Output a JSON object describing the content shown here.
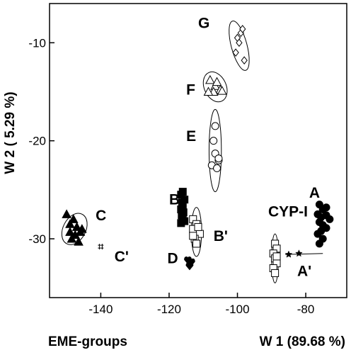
{
  "chart_data": {
    "type": "scatter",
    "xlabel": "W 1 (89.68 %)",
    "ylabel": "W 2 ( 5.29 %)",
    "caption": "EME-groups",
    "xlim": [
      -155,
      -68
    ],
    "ylim": [
      -36,
      -6
    ],
    "xticks": [
      -140,
      -120,
      -100,
      -80
    ],
    "yticks": [
      -10,
      -20,
      -30
    ],
    "grid": false,
    "groups": [
      {
        "name": "G",
        "marker": "diamond-open",
        "points": [
          [
            -100,
            -9.5
          ],
          [
            -99,
            -9
          ],
          [
            -98.5,
            -8.6
          ],
          [
            -99.5,
            -10
          ],
          [
            -100.5,
            -11
          ],
          [
            -98,
            -11.8
          ]
        ],
        "ellipse": {
          "cx": -99.5,
          "cy": -10.3,
          "rx": 2.3,
          "ry": 2.6,
          "angle": 15
        }
      },
      {
        "name": "F",
        "marker": "triangle-open",
        "points": [
          [
            -108,
            -13.8
          ],
          [
            -106.5,
            -14.4
          ],
          [
            -105,
            -14.8
          ],
          [
            -107,
            -15
          ],
          [
            -104.5,
            -14.9
          ],
          [
            -108.5,
            -15
          ],
          [
            -106,
            -14
          ]
        ],
        "ellipse": {
          "cx": -106.5,
          "cy": -14.5,
          "rx": 3.2,
          "ry": 1.6,
          "angle": 25
        }
      },
      {
        "name": "E",
        "marker": "circle-open",
        "points": [
          [
            -106.5,
            -18.5
          ],
          [
            -107,
            -20
          ],
          [
            -106.5,
            -21.3
          ],
          [
            -105.5,
            -22
          ],
          [
            -107.5,
            -22.5
          ],
          [
            -106,
            -22.8
          ],
          [
            -105.5,
            -21.8
          ]
        ],
        "ellipse": {
          "cx": -106.5,
          "cy": -21,
          "rx": 1.8,
          "ry": 4.2,
          "angle": 0
        }
      },
      {
        "name": "B",
        "marker": "square-filled",
        "points": [
          [
            -116,
            -25.2
          ],
          [
            -116.5,
            -25.5
          ],
          [
            -115.5,
            -26
          ],
          [
            -116.2,
            -26.3
          ],
          [
            -116,
            -26.6
          ],
          [
            -116.5,
            -27
          ],
          [
            -115.8,
            -27.3
          ],
          [
            -116.3,
            -27.6
          ],
          [
            -116,
            -27.9
          ],
          [
            -115.5,
            -28.2
          ],
          [
            -116.5,
            -28.4
          ]
        ],
        "ellipse": null
      },
      {
        "name": "B'",
        "marker": "square-open",
        "points": [
          [
            -113,
            -28
          ],
          [
            -112,
            -28.5
          ],
          [
            -113,
            -29
          ],
          [
            -111,
            -29.5
          ],
          [
            -112.5,
            -30
          ],
          [
            -112,
            -30.5
          ],
          [
            -113,
            -29.7
          ],
          [
            -111.5,
            -28.8
          ]
        ],
        "ellipse": {
          "cx": -112,
          "cy": -29.3,
          "rx": 1.5,
          "ry": 2.5,
          "angle": 0
        }
      },
      {
        "name": "C",
        "marker": "triangle-filled",
        "points": [
          [
            -150,
            -27.5
          ],
          [
            -148,
            -28
          ],
          [
            -149,
            -28.5
          ],
          [
            -147,
            -28.8
          ],
          [
            -149,
            -29.3
          ],
          [
            -147.5,
            -29.6
          ],
          [
            -146,
            -29.3
          ],
          [
            -148.5,
            -30
          ],
          [
            -146.5,
            -30.3
          ],
          [
            -145.5,
            -29
          ]
        ],
        "ellipse": {
          "cx": -147.7,
          "cy": -29,
          "rx": 3.3,
          "ry": 1.7,
          "angle": -28
        }
      },
      {
        "name": "C'",
        "marker": "hash",
        "points": [
          [
            -140,
            -30.8
          ]
        ],
        "ellipse": null
      },
      {
        "name": "D",
        "marker": "heart-filled",
        "points": [
          [
            -114.5,
            -32.2
          ],
          [
            -113.5,
            -32.4
          ],
          [
            -114,
            -32.8
          ]
        ],
        "ellipse": null
      },
      {
        "name": "A",
        "marker": "circle-filled",
        "points": [
          [
            -76,
            -26.5
          ],
          [
            -75,
            -27
          ],
          [
            -74,
            -26.8
          ],
          [
            -76.5,
            -27.5
          ],
          [
            -75.5,
            -27.8
          ],
          [
            -74,
            -27.6
          ],
          [
            -73,
            -28
          ],
          [
            -76,
            -28.3
          ],
          [
            -75,
            -28.6
          ],
          [
            -74,
            -28.9
          ],
          [
            -75.5,
            -29.2
          ],
          [
            -76.5,
            -29.5
          ],
          [
            -75,
            -30
          ],
          [
            -76,
            -30.5
          ]
        ],
        "ellipse": null
      },
      {
        "name": "CYP-I",
        "marker": "square-open",
        "points": [
          [
            -89,
            -30.5
          ],
          [
            -88.5,
            -31
          ],
          [
            -89.5,
            -31.5
          ],
          [
            -89,
            -32
          ],
          [
            -88.5,
            -32.5
          ],
          [
            -89.5,
            -33
          ],
          [
            -89,
            -33.5
          ],
          [
            -88.5,
            -31.8
          ]
        ],
        "ellipse": {
          "cx": -89,
          "cy": -32,
          "rx": 1,
          "ry": 2.5,
          "angle": 0
        }
      },
      {
        "name": "A'",
        "marker": "star-filled",
        "points": [
          [
            -85,
            -31.6
          ],
          [
            -82,
            -31.5
          ]
        ],
        "ellipse": null,
        "line": [
          [
            -86,
            -31.6
          ],
          [
            -75,
            -31.5
          ]
        ]
      }
    ],
    "labels": [
      {
        "text": "G",
        "x": -111.5,
        "y": -8
      },
      {
        "text": "F",
        "x": -115,
        "y": -14.8
      },
      {
        "text": "E",
        "x": -115,
        "y": -19.5
      },
      {
        "text": "B",
        "x": -120,
        "y": -26
      },
      {
        "text": "B'",
        "x": -107,
        "y": -29.7
      },
      {
        "text": "C",
        "x": -141.5,
        "y": -27.6
      },
      {
        "text": "C'",
        "x": -136,
        "y": -31.8
      },
      {
        "text": "D",
        "x": -120.5,
        "y": -32
      },
      {
        "text": "CYP-I",
        "x": -91,
        "y": -27.2
      },
      {
        "text": "A",
        "x": -79,
        "y": -25.3
      },
      {
        "text": "A'",
        "x": -82.5,
        "y": -33.3
      }
    ]
  }
}
